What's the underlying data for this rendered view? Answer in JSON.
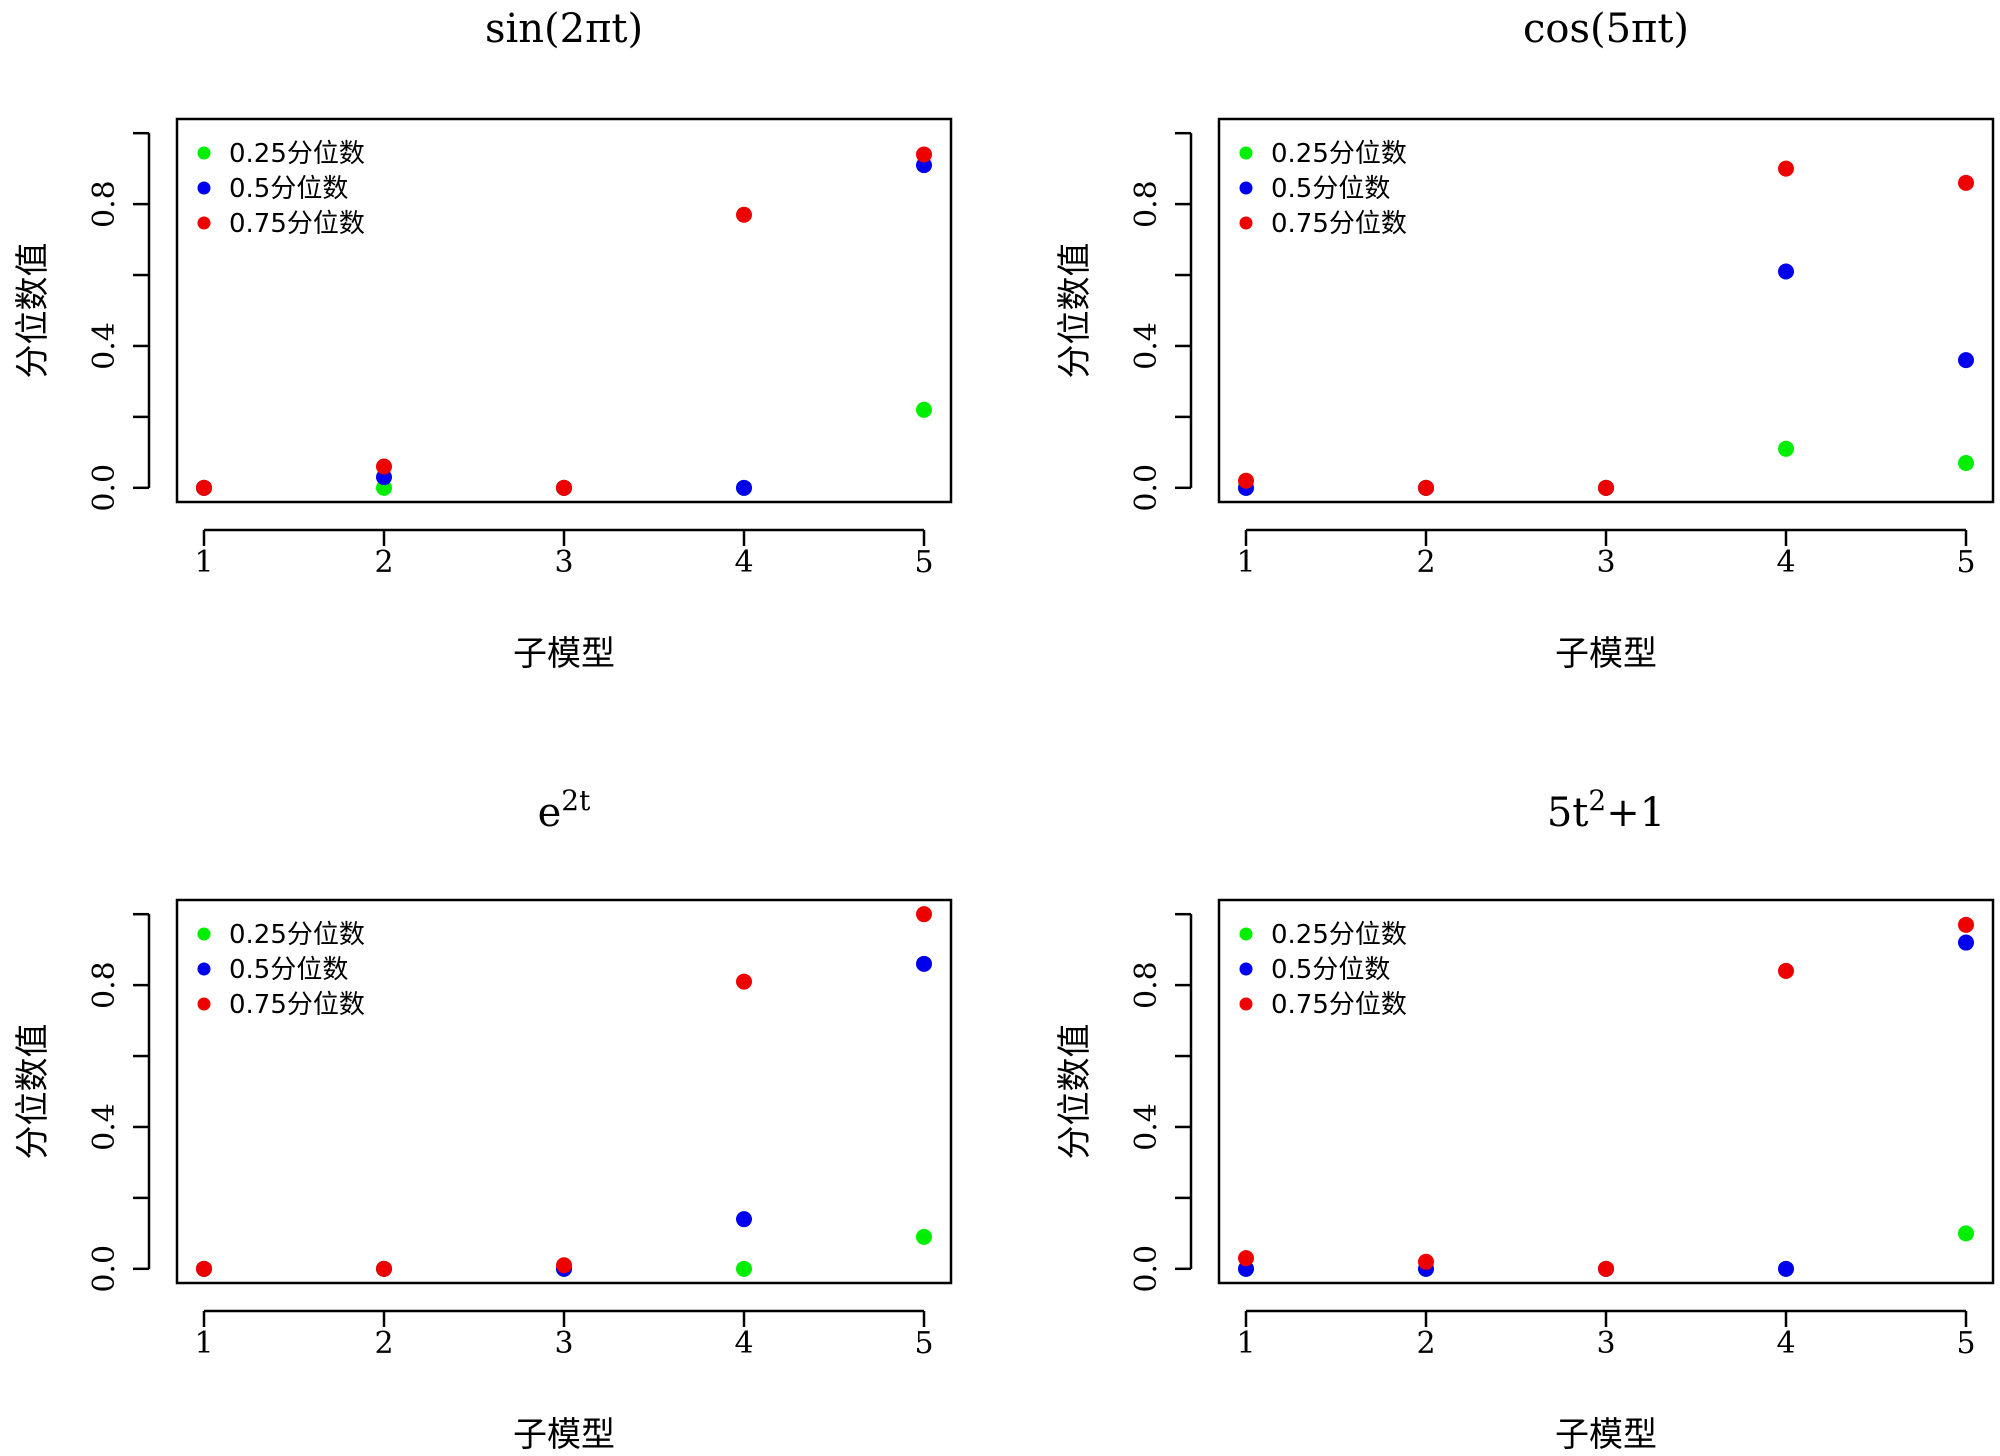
{
  "chart_data": [
    {
      "type": "scatter",
      "title": "sin(2πt)",
      "title_main": "sin(2πt)",
      "title_sup": "",
      "title_tail": "",
      "xlabel": "子模型",
      "ylabel": "分位数值",
      "categories": [
        "1",
        "2",
        "3",
        "4",
        "5"
      ],
      "x": [
        1,
        2,
        3,
        4,
        5
      ],
      "xlim": [
        0.85,
        5.15
      ],
      "ylim": [
        -0.04,
        1.04
      ],
      "yticks": [
        0,
        0.2,
        0.4,
        0.6,
        0.8,
        1.0
      ],
      "ytick_labels": [
        "0.0",
        "",
        "0.4",
        "",
        "0.8",
        ""
      ],
      "legend_position": "top-left",
      "series": [
        {
          "name": "0.25分位数",
          "color": "#00ee00",
          "values": [
            0.0,
            0.0,
            0.0,
            0.0,
            0.22
          ]
        },
        {
          "name": "0.5分位数",
          "color": "#0000ee",
          "values": [
            0.0,
            0.03,
            0.0,
            0.0,
            0.91
          ]
        },
        {
          "name": "0.75分位数",
          "color": "#ee0000",
          "values": [
            0.0,
            0.06,
            0.0,
            0.77,
            0.94
          ]
        }
      ]
    },
    {
      "type": "scatter",
      "title": "cos(5πt)",
      "title_main": "cos(5πt)",
      "title_sup": "",
      "title_tail": "",
      "xlabel": "子模型",
      "ylabel": "分位数值",
      "categories": [
        "1",
        "2",
        "3",
        "4",
        "5"
      ],
      "x": [
        1,
        2,
        3,
        4,
        5
      ],
      "xlim": [
        0.85,
        5.15
      ],
      "ylim": [
        -0.04,
        1.04
      ],
      "yticks": [
        0,
        0.2,
        0.4,
        0.6,
        0.8,
        1.0
      ],
      "ytick_labels": [
        "0.0",
        "",
        "0.4",
        "",
        "0.8",
        ""
      ],
      "legend_position": "top-left",
      "series": [
        {
          "name": "0.25分位数",
          "color": "#00ee00",
          "values": [
            0.0,
            0.0,
            0.0,
            0.11,
            0.07
          ]
        },
        {
          "name": "0.5分位数",
          "color": "#0000ee",
          "values": [
            0.0,
            0.0,
            0.0,
            0.61,
            0.36
          ]
        },
        {
          "name": "0.75分位数",
          "color": "#ee0000",
          "values": [
            0.02,
            0.0,
            0.0,
            0.9,
            0.86
          ]
        }
      ]
    },
    {
      "type": "scatter",
      "title": "e2t",
      "title_main": "e",
      "title_sup": "2t",
      "title_tail": "",
      "xlabel": "子模型",
      "ylabel": "分位数值",
      "categories": [
        "1",
        "2",
        "3",
        "4",
        "5"
      ],
      "x": [
        1,
        2,
        3,
        4,
        5
      ],
      "xlim": [
        0.85,
        5.15
      ],
      "ylim": [
        -0.04,
        1.04
      ],
      "yticks": [
        0,
        0.2,
        0.4,
        0.6,
        0.8,
        1.0
      ],
      "ytick_labels": [
        "0.0",
        "",
        "0.4",
        "",
        "0.8",
        ""
      ],
      "legend_position": "top-left",
      "series": [
        {
          "name": "0.25分位数",
          "color": "#00ee00",
          "values": [
            0.0,
            0.0,
            0.0,
            0.0,
            0.09
          ]
        },
        {
          "name": "0.5分位数",
          "color": "#0000ee",
          "values": [
            0.0,
            0.0,
            0.0,
            0.14,
            0.86
          ]
        },
        {
          "name": "0.75分位数",
          "color": "#ee0000",
          "values": [
            0.0,
            0.0,
            0.01,
            0.81,
            1.0
          ]
        }
      ]
    },
    {
      "type": "scatter",
      "title": "5t2+1",
      "title_main": "5t",
      "title_sup": "2",
      "title_tail": "+1",
      "xlabel": "子模型",
      "ylabel": "分位数值",
      "categories": [
        "1",
        "2",
        "3",
        "4",
        "5"
      ],
      "x": [
        1,
        2,
        3,
        4,
        5
      ],
      "xlim": [
        0.85,
        5.15
      ],
      "ylim": [
        -0.04,
        1.04
      ],
      "yticks": [
        0,
        0.2,
        0.4,
        0.6,
        0.8,
        1.0
      ],
      "ytick_labels": [
        "0.0",
        "",
        "0.4",
        "",
        "0.8",
        ""
      ],
      "legend_position": "top-left",
      "series": [
        {
          "name": "0.25分位数",
          "color": "#00ee00",
          "values": [
            0.0,
            0.0,
            0.0,
            0.0,
            0.1
          ]
        },
        {
          "name": "0.5分位数",
          "color": "#0000ee",
          "values": [
            0.0,
            0.0,
            0.0,
            0.0,
            0.92
          ]
        },
        {
          "name": "0.75分位数",
          "color": "#ee0000",
          "values": [
            0.03,
            0.02,
            0.0,
            0.84,
            0.97
          ]
        }
      ]
    }
  ]
}
